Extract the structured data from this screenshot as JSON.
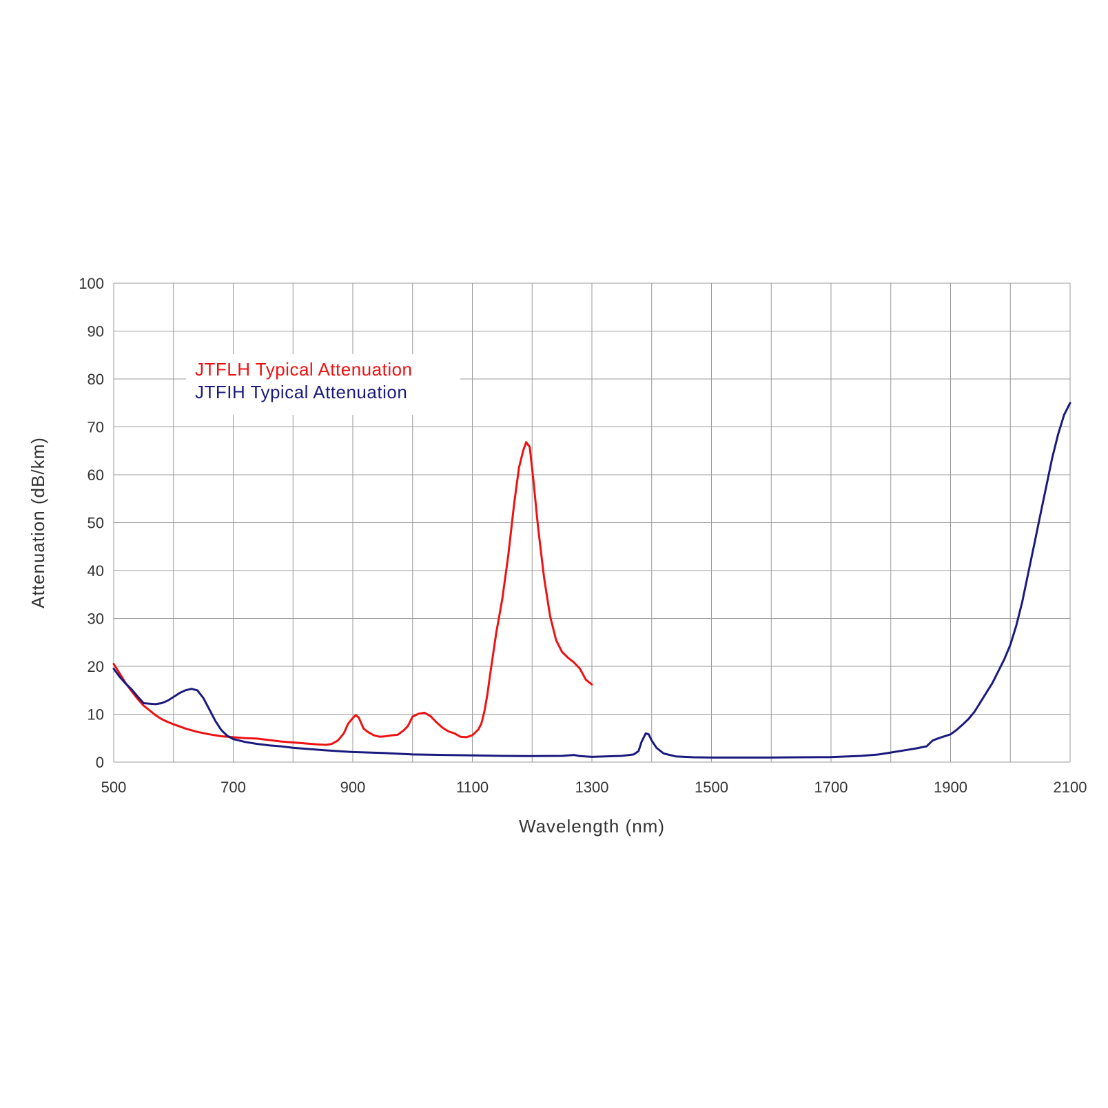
{
  "chart_data": {
    "type": "line",
    "title": "",
    "xlabel": "Wavelength (nm)",
    "ylabel": "Attenuation (dB/km)",
    "xlim": [
      500,
      2100
    ],
    "ylim": [
      0,
      100
    ],
    "x_ticks": [
      500,
      700,
      900,
      1100,
      1300,
      1500,
      1700,
      1900,
      2100
    ],
    "y_ticks": [
      0,
      10,
      20,
      30,
      40,
      50,
      60,
      70,
      80,
      90,
      100
    ],
    "x_gridlines": [
      500,
      600,
      700,
      800,
      900,
      1000,
      1100,
      1200,
      1300,
      1400,
      1500,
      1600,
      1700,
      1800,
      1900,
      2000,
      2100
    ],
    "grid": true,
    "legend_position": "top-left",
    "series": [
      {
        "name": "JTFLH Typical Attenuation",
        "color": "#ee1111",
        "points": [
          [
            500,
            20.5
          ],
          [
            510,
            18.5
          ],
          [
            520,
            16.5
          ],
          [
            530,
            14.8
          ],
          [
            540,
            13.2
          ],
          [
            550,
            11.8
          ],
          [
            560,
            10.8
          ],
          [
            570,
            9.8
          ],
          [
            580,
            9.0
          ],
          [
            590,
            8.4
          ],
          [
            600,
            7.9
          ],
          [
            620,
            7.0
          ],
          [
            640,
            6.3
          ],
          [
            660,
            5.8
          ],
          [
            680,
            5.4
          ],
          [
            700,
            5.2
          ],
          [
            720,
            5.0
          ],
          [
            740,
            4.9
          ],
          [
            760,
            4.6
          ],
          [
            780,
            4.3
          ],
          [
            800,
            4.1
          ],
          [
            820,
            3.9
          ],
          [
            840,
            3.7
          ],
          [
            855,
            3.6
          ],
          [
            865,
            3.8
          ],
          [
            875,
            4.5
          ],
          [
            885,
            6.0
          ],
          [
            892,
            8.0
          ],
          [
            900,
            9.2
          ],
          [
            905,
            9.8
          ],
          [
            910,
            9.3
          ],
          [
            918,
            7.0
          ],
          [
            925,
            6.3
          ],
          [
            935,
            5.6
          ],
          [
            945,
            5.3
          ],
          [
            955,
            5.4
          ],
          [
            965,
            5.6
          ],
          [
            975,
            5.7
          ],
          [
            985,
            6.6
          ],
          [
            992,
            7.5
          ],
          [
            1000,
            9.5
          ],
          [
            1010,
            10.1
          ],
          [
            1020,
            10.3
          ],
          [
            1030,
            9.6
          ],
          [
            1040,
            8.3
          ],
          [
            1050,
            7.2
          ],
          [
            1060,
            6.4
          ],
          [
            1070,
            6.0
          ],
          [
            1080,
            5.3
          ],
          [
            1090,
            5.2
          ],
          [
            1100,
            5.6
          ],
          [
            1110,
            6.8
          ],
          [
            1115,
            8.0
          ],
          [
            1120,
            10.5
          ],
          [
            1125,
            14.0
          ],
          [
            1130,
            18.5
          ],
          [
            1140,
            27.0
          ],
          [
            1150,
            34.0
          ],
          [
            1160,
            43.0
          ],
          [
            1170,
            54.0
          ],
          [
            1178,
            61.5
          ],
          [
            1185,
            65.0
          ],
          [
            1190,
            66.8
          ],
          [
            1196,
            65.8
          ],
          [
            1202,
            59.0
          ],
          [
            1210,
            49.0
          ],
          [
            1220,
            38.5
          ],
          [
            1230,
            30.5
          ],
          [
            1240,
            25.5
          ],
          [
            1250,
            23.0
          ],
          [
            1260,
            21.8
          ],
          [
            1270,
            20.8
          ],
          [
            1280,
            19.5
          ],
          [
            1290,
            17.2
          ],
          [
            1300,
            16.2
          ]
        ]
      },
      {
        "name": "JTFIH Typical Attenuation",
        "color": "#1a1a7e",
        "points": [
          [
            500,
            19.5
          ],
          [
            510,
            17.8
          ],
          [
            520,
            16.4
          ],
          [
            530,
            15.2
          ],
          [
            540,
            13.7
          ],
          [
            550,
            12.3
          ],
          [
            560,
            12.2
          ],
          [
            570,
            12.1
          ],
          [
            580,
            12.3
          ],
          [
            590,
            12.8
          ],
          [
            600,
            13.6
          ],
          [
            610,
            14.4
          ],
          [
            620,
            15.0
          ],
          [
            630,
            15.3
          ],
          [
            640,
            15.0
          ],
          [
            650,
            13.4
          ],
          [
            660,
            11.0
          ],
          [
            670,
            8.6
          ],
          [
            680,
            6.7
          ],
          [
            690,
            5.5
          ],
          [
            700,
            4.8
          ],
          [
            720,
            4.2
          ],
          [
            740,
            3.8
          ],
          [
            760,
            3.5
          ],
          [
            780,
            3.3
          ],
          [
            800,
            3.0
          ],
          [
            850,
            2.5
          ],
          [
            900,
            2.1
          ],
          [
            950,
            1.9
          ],
          [
            1000,
            1.6
          ],
          [
            1050,
            1.5
          ],
          [
            1100,
            1.4
          ],
          [
            1150,
            1.3
          ],
          [
            1200,
            1.25
          ],
          [
            1250,
            1.3
          ],
          [
            1270,
            1.5
          ],
          [
            1280,
            1.25
          ],
          [
            1300,
            1.1
          ],
          [
            1350,
            1.3
          ],
          [
            1370,
            1.6
          ],
          [
            1378,
            2.3
          ],
          [
            1383,
            4.2
          ],
          [
            1390,
            6.0
          ],
          [
            1395,
            5.8
          ],
          [
            1400,
            4.5
          ],
          [
            1408,
            3.0
          ],
          [
            1420,
            1.8
          ],
          [
            1440,
            1.2
          ],
          [
            1470,
            1.0
          ],
          [
            1500,
            0.95
          ],
          [
            1550,
            0.95
          ],
          [
            1600,
            0.95
          ],
          [
            1650,
            1.0
          ],
          [
            1700,
            1.05
          ],
          [
            1750,
            1.3
          ],
          [
            1780,
            1.6
          ],
          [
            1800,
            2.0
          ],
          [
            1820,
            2.4
          ],
          [
            1840,
            2.8
          ],
          [
            1860,
            3.3
          ],
          [
            1870,
            4.5
          ],
          [
            1880,
            5.0
          ],
          [
            1900,
            5.8
          ],
          [
            1910,
            6.7
          ],
          [
            1920,
            7.8
          ],
          [
            1930,
            9.0
          ],
          [
            1940,
            10.5
          ],
          [
            1950,
            12.5
          ],
          [
            1960,
            14.5
          ],
          [
            1970,
            16.5
          ],
          [
            1980,
            19.0
          ],
          [
            1990,
            21.5
          ],
          [
            2000,
            24.5
          ],
          [
            2010,
            28.5
          ],
          [
            2020,
            33.5
          ],
          [
            2030,
            39.5
          ],
          [
            2040,
            45.5
          ],
          [
            2050,
            51.5
          ],
          [
            2060,
            57.5
          ],
          [
            2070,
            63.5
          ],
          [
            2080,
            68.5
          ],
          [
            2090,
            72.5
          ],
          [
            2100,
            75.0
          ]
        ]
      }
    ]
  }
}
